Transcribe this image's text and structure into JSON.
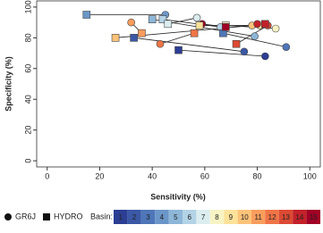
{
  "chart_data": {
    "type": "scatter",
    "xlabel": "Sensitivity (%)",
    "ylabel": "Specificity (%)",
    "xlim": [
      -4,
      104
    ],
    "ylim": [
      -4,
      104
    ],
    "xticks": [
      0,
      20,
      40,
      60,
      80,
      100
    ],
    "yticks": [
      0,
      20,
      40,
      60,
      80,
      100
    ],
    "legend_title": "Basin:",
    "categories": [
      1,
      2,
      3,
      4,
      5,
      6,
      7,
      8,
      9,
      10,
      11,
      12,
      13,
      14,
      15
    ],
    "colors": [
      "#2c3e94",
      "#3b58a6",
      "#4e76b8",
      "#6b96c8",
      "#8db6d8",
      "#b3d3e6",
      "#dcedf0",
      "#f7f3c4",
      "#fde29a",
      "#fdc379",
      "#f99d5d",
      "#ef7446",
      "#dc4a34",
      "#c22129",
      "#a10026"
    ],
    "series": [
      {
        "name": "GR6J",
        "marker": "circle",
        "x": [
          83,
          75,
          91,
          45,
          79,
          66,
          57,
          87,
          81,
          78,
          32,
          43,
          84,
          80,
          59
        ],
        "values": [
          68,
          71,
          74,
          95,
          81,
          87,
          93,
          86,
          88,
          88,
          90,
          76,
          88,
          89,
          89
        ]
      },
      {
        "name": "HYDRO",
        "marker": "square",
        "x": [
          50,
          33,
          67,
          15,
          40,
          44,
          46,
          68,
          58,
          26,
          36,
          56,
          72,
          83,
          68
        ],
        "values": [
          72,
          80,
          83,
          95,
          92,
          92,
          89,
          88,
          88,
          80,
          83,
          83,
          76,
          89,
          87
        ]
      }
    ]
  }
}
